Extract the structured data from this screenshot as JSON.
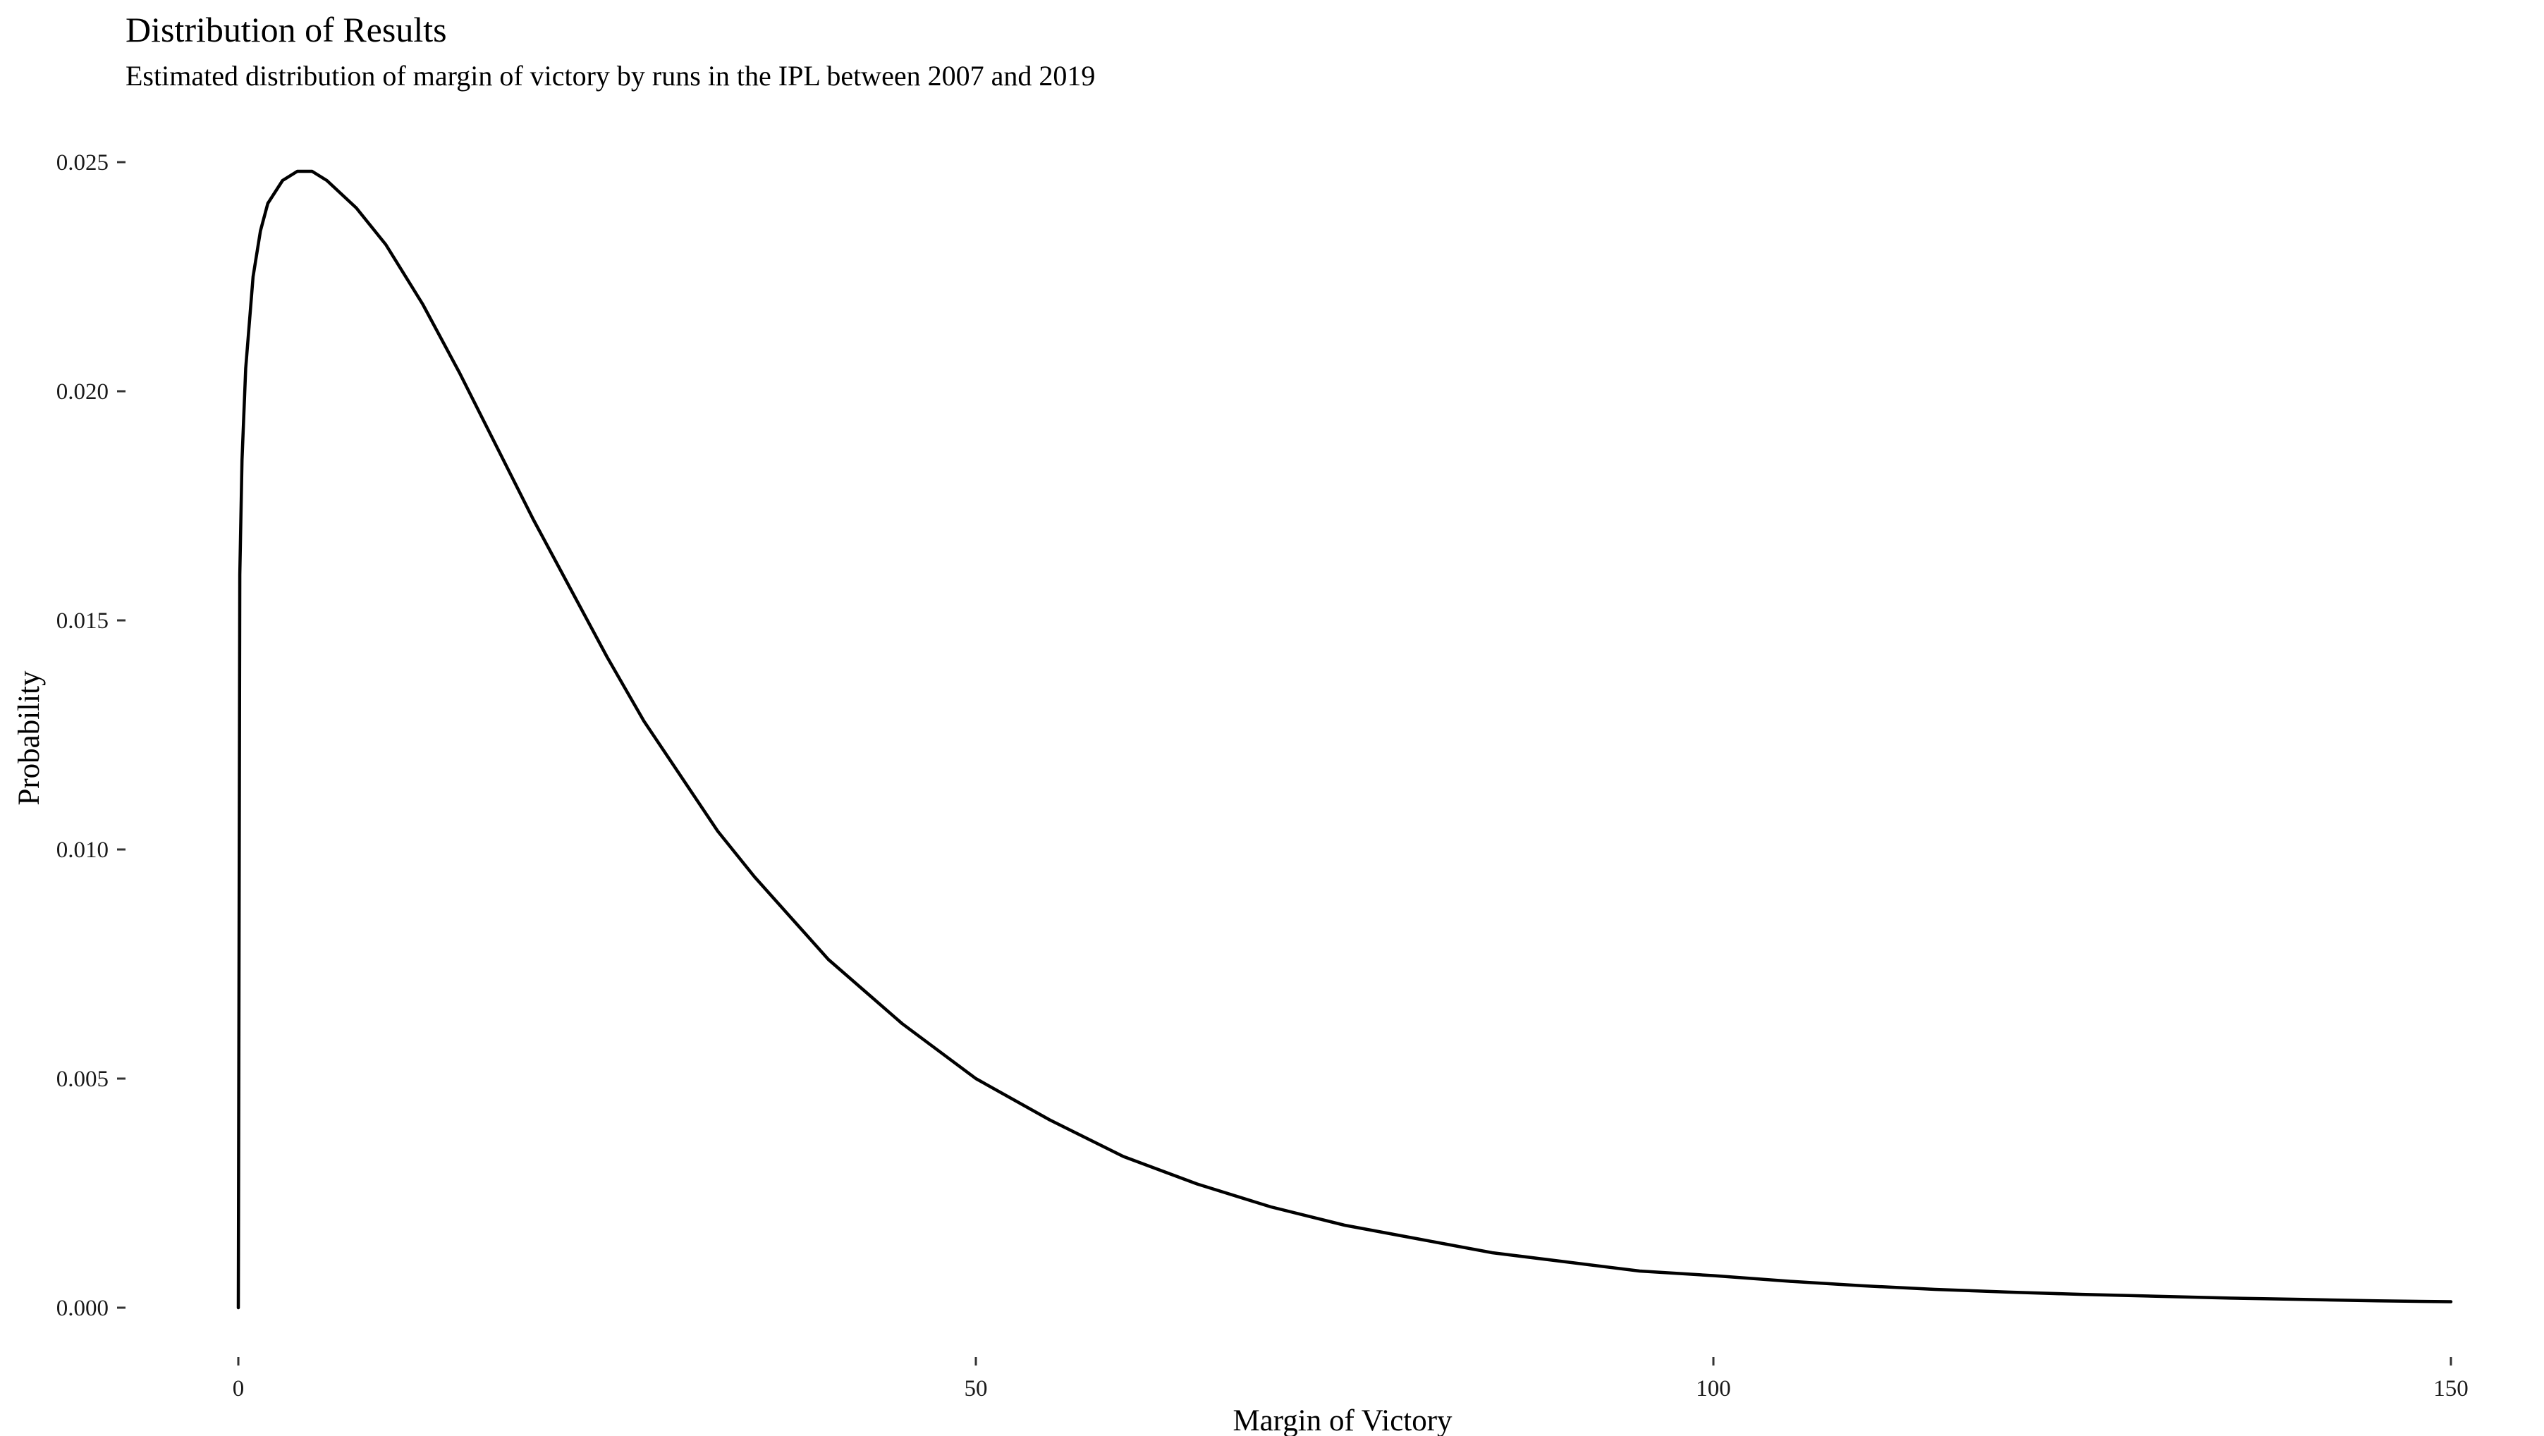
{
  "chart_data": {
    "type": "line",
    "title": "Distribution of Results",
    "subtitle": "Estimated distribution of margin of victory by runs in the IPL between 2007 and 2019",
    "xlabel": "Margin of Victory",
    "ylabel": "Probability",
    "xlim": [
      0,
      150
    ],
    "ylim": [
      0,
      0.025
    ],
    "x_ticks": [
      0,
      50,
      100,
      150
    ],
    "x_tick_labels": [
      "0",
      "50",
      "100",
      "150"
    ],
    "y_ticks": [
      0,
      0.005,
      0.01,
      0.015,
      0.02,
      0.025
    ],
    "y_tick_labels": [
      "0.000",
      "0.005",
      "0.010",
      "0.015",
      "0.020",
      "0.025"
    ],
    "grid": false,
    "legend": "none",
    "line_color": "#000000",
    "series": [
      {
        "x": [
          0,
          0.1,
          0.25,
          0.5,
          1,
          1.5,
          2,
          3,
          4,
          5,
          6,
          8,
          10,
          12.5,
          15,
          17.5,
          20,
          22.5,
          25,
          27.5,
          30,
          32.5,
          35,
          37.5,
          40,
          42.5,
          45,
          47.5,
          50,
          55,
          60,
          65,
          70,
          75,
          80,
          85,
          90,
          95,
          100,
          105,
          110,
          115,
          120,
          125,
          130,
          135,
          140,
          145,
          150
        ],
        "y": [
          0,
          0.016,
          0.0185,
          0.0205,
          0.0225,
          0.0235,
          0.0241,
          0.0246,
          0.0248,
          0.0248,
          0.0246,
          0.024,
          0.0232,
          0.0219,
          0.0204,
          0.0188,
          0.0172,
          0.0157,
          0.0142,
          0.0128,
          0.0116,
          0.0104,
          0.0094,
          0.0085,
          0.0076,
          0.0069,
          0.0062,
          0.0056,
          0.005,
          0.0041,
          0.0033,
          0.0027,
          0.0022,
          0.0018,
          0.0015,
          0.0012,
          0.001,
          0.0008,
          0.0007,
          0.00058,
          0.00048,
          0.0004,
          0.00034,
          0.00029,
          0.00025,
          0.00021,
          0.00018,
          0.00015,
          0.00013
        ]
      }
    ]
  }
}
